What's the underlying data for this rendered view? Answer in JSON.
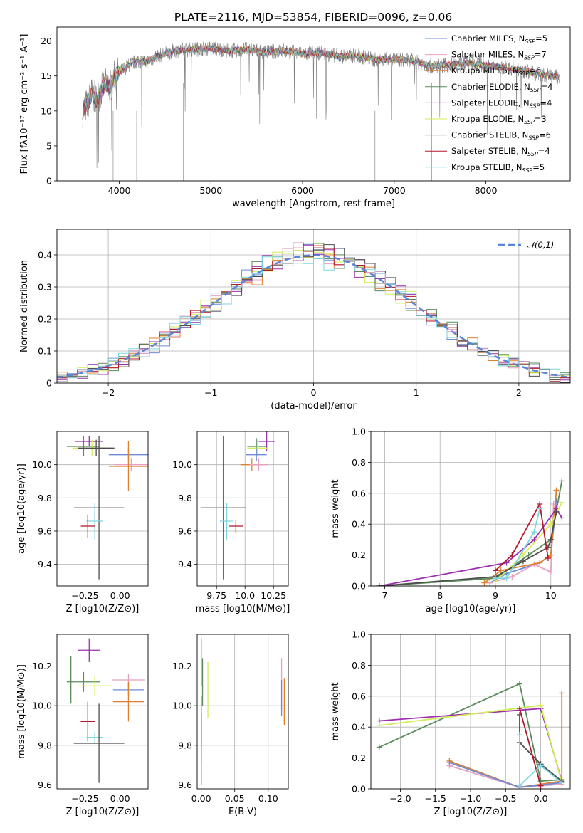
{
  "title": "PLATE=2116, MJD=53854, FIBERID=0096, z=0.06",
  "chart_data": [
    {
      "id": "spectrum",
      "type": "line",
      "xlabel": "wavelength [Angstrom, rest frame]",
      "ylabel": "Flux [fλ10⁻¹⁷ erg cm⁻² s⁻¹ A⁻¹]",
      "xlim": [
        3320,
        8920
      ],
      "ylim": [
        0,
        22
      ],
      "xticks": [
        4000,
        5000,
        6000,
        7000,
        8000
      ],
      "yticks": [
        0,
        5,
        10,
        15,
        20
      ],
      "grid": false,
      "legend_position": "upper-right",
      "data_color": "#808080",
      "continuum": {
        "x": [
          3600,
          3650,
          3700,
          3750,
          3800,
          3850,
          3900,
          3950,
          4000,
          4100,
          4200,
          4300,
          4400,
          4500,
          4600,
          4800,
          5000,
          5200,
          5400,
          5600,
          5800,
          6000,
          6200,
          6400,
          6600,
          6800,
          7000,
          7200,
          7400,
          7600,
          7800,
          8000,
          8200,
          8400,
          8600,
          8800
        ],
        "y": [
          10,
          11,
          12.5,
          11.5,
          12.8,
          14,
          13.5,
          15,
          15.5,
          16.5,
          17.2,
          17,
          17.8,
          18.2,
          18.6,
          18.8,
          19.0,
          18.6,
          18.8,
          18.4,
          18.6,
          18.2,
          18.3,
          17.8,
          17.9,
          17.3,
          17.4,
          17.2,
          16.4,
          16.6,
          16.9,
          16.5,
          16.2,
          15.8,
          15.2,
          14.8
        ]
      },
      "series": [
        {
          "name": "Chabrier MILES, N",
          "n_ssp": "5",
          "color": "#6d8bd5"
        },
        {
          "name": "Salpeter MILES, N",
          "n_ssp": "7",
          "color": "#e8a0c0"
        },
        {
          "name": "Kroupa MILES, N",
          "n_ssp": "6",
          "color": "#e07f2c"
        },
        {
          "name": "Chabrier ELODIE, N",
          "n_ssp": "4",
          "color": "#5a8c5a"
        },
        {
          "name": "Salpeter ELODIE, N",
          "n_ssp": "4",
          "color": "#9b2fae"
        },
        {
          "name": "Kroupa ELODIE, N",
          "n_ssp": "3",
          "color": "#d4ec5a"
        },
        {
          "name": "Chabrier STELIB, N",
          "n_ssp": "6",
          "color": "#4d4d4d"
        },
        {
          "name": "Salpeter STELIB, N",
          "n_ssp": "4",
          "color": "#b2182b"
        },
        {
          "name": "Kroupa STELIB, N",
          "n_ssp": "5",
          "color": "#7ed6df"
        }
      ]
    },
    {
      "id": "residuals",
      "type": "line",
      "xlabel": "(data-model)/error",
      "ylabel": "Normed distribution",
      "xlim": [
        -2.5,
        2.5
      ],
      "ylim": [
        0,
        0.48
      ],
      "xticks": [
        -2,
        -1,
        0,
        1,
        2
      ],
      "yticks": [
        0.0,
        0.1,
        0.2,
        0.3,
        0.4
      ],
      "grid": true,
      "legend_position": "upper-right",
      "gaussian_label": "𝒩(0,1)",
      "gaussian_color": "#5b85d6"
    },
    {
      "id": "z-age",
      "type": "scatter",
      "xlabel": "Z [log10(Z/Z⊙)]",
      "ylabel": "age  [log10(age/yr)]",
      "xlim": [
        -0.45,
        0.2
      ],
      "ylim": [
        9.27,
        10.2
      ],
      "xticks": [
        -0.25,
        0.0
      ],
      "yticks": [
        9.4,
        9.6,
        9.8,
        10.0
      ],
      "grid": true,
      "points": [
        {
          "x": -0.26,
          "y": 10.11,
          "xerr": 0.12,
          "yerr": 0.06,
          "color": "#5a8c5a"
        },
        {
          "x": -0.22,
          "y": 10.14,
          "xerr": 0.1,
          "yerr": 0.03,
          "color": "#9b2fae"
        },
        {
          "x": -0.2,
          "y": 10.1,
          "xerr": 0.14,
          "yerr": 0.05,
          "color": "#d4ec5a"
        },
        {
          "x": -0.17,
          "y": 10.1,
          "xerr": 0.13,
          "yerr": 0.05,
          "color": "#4d4d4d"
        },
        {
          "x": 0.06,
          "y": 10.06,
          "xerr": 0.14,
          "yerr": 0.04,
          "color": "#6d8bd5"
        },
        {
          "x": 0.08,
          "y": 10.0,
          "xerr": 0.12,
          "yerr": 0.04,
          "color": "#e8a0c0"
        },
        {
          "x": 0.06,
          "y": 9.99,
          "xerr": 0.14,
          "yerr": 0.15,
          "color": "#e07f2c"
        },
        {
          "x": -0.15,
          "y": 9.74,
          "xerr": 0.18,
          "yerr": 0.43,
          "color": "#4d4d4d"
        },
        {
          "x": -0.18,
          "y": 9.66,
          "xerr": 0.06,
          "yerr": 0.11,
          "color": "#7ed6df"
        },
        {
          "x": -0.23,
          "y": 9.63,
          "xerr": 0.05,
          "yerr": 0.07,
          "color": "#b2182b"
        }
      ]
    },
    {
      "id": "mass-age",
      "type": "scatter",
      "xlabel": "mass [log10(M/M⊙)]",
      "ylabel": "",
      "xlim": [
        9.58,
        10.38
      ],
      "ylim": [
        9.27,
        10.2
      ],
      "xticks": [
        9.75,
        10.0,
        10.25
      ],
      "yticks": [
        9.4,
        9.6,
        9.8,
        10.0
      ],
      "grid": true,
      "points": [
        {
          "x": 10.19,
          "y": 10.14,
          "xerr": 0.07,
          "yerr": 0.06,
          "color": "#9b2fae"
        },
        {
          "x": 10.1,
          "y": 10.11,
          "xerr": 0.08,
          "yerr": 0.05,
          "color": "#5a8c5a"
        },
        {
          "x": 10.11,
          "y": 10.1,
          "xerr": 0.09,
          "yerr": 0.05,
          "color": "#d4ec5a"
        },
        {
          "x": 10.1,
          "y": 10.06,
          "xerr": 0.09,
          "yerr": 0.04,
          "color": "#6d8bd5"
        },
        {
          "x": 10.06,
          "y": 10.0,
          "xerr": 0.1,
          "yerr": 0.04,
          "color": "#e07f2c"
        },
        {
          "x": 10.12,
          "y": 10.0,
          "xerr": 0.08,
          "yerr": 0.04,
          "color": "#e8a0c0"
        },
        {
          "x": 9.81,
          "y": 9.74,
          "xerr": 0.2,
          "yerr": 0.43,
          "color": "#4d4d4d"
        },
        {
          "x": 9.84,
          "y": 9.66,
          "xerr": 0.06,
          "yerr": 0.11,
          "color": "#7ed6df"
        },
        {
          "x": 9.92,
          "y": 9.63,
          "xerr": 0.06,
          "yerr": 0.04,
          "color": "#b2182b"
        }
      ]
    },
    {
      "id": "age-weight",
      "type": "line",
      "xlabel": "age  [log10(age/yr)]",
      "ylabel": "mass weight",
      "xlim": [
        6.75,
        10.35
      ],
      "ylim": [
        0,
        1.0
      ],
      "xticks": [
        7,
        8,
        9,
        10
      ],
      "yticks": [
        0.0,
        0.2,
        0.4,
        0.6,
        0.8,
        1.0
      ],
      "grid": true,
      "series": [
        {
          "color": "#6d8bd5",
          "x": [
            8.9,
            9.2,
            9.8,
            10.0,
            10.1
          ],
          "y": [
            0.02,
            0.08,
            0.15,
            0.2,
            0.55
          ]
        },
        {
          "color": "#e8a0c0",
          "x": [
            8.9,
            9.3,
            9.7,
            10.0,
            10.05
          ],
          "y": [
            0.02,
            0.06,
            0.14,
            0.09,
            0.53
          ]
        },
        {
          "color": "#e07f2c",
          "x": [
            8.8,
            9.1,
            9.8,
            10.0,
            10.1
          ],
          "y": [
            0.02,
            0.1,
            0.15,
            0.2,
            0.62
          ]
        },
        {
          "color": "#5a8c5a",
          "x": [
            6.9,
            9.0,
            9.6,
            10.0,
            10.2
          ],
          "y": [
            0.0,
            0.05,
            0.2,
            0.3,
            0.68
          ]
        },
        {
          "color": "#9b2fae",
          "x": [
            6.9,
            9.2,
            9.7,
            10.1,
            10.2
          ],
          "y": [
            0.0,
            0.15,
            0.3,
            0.5,
            0.44
          ]
        },
        {
          "color": "#d4ec5a",
          "x": [
            9.0,
            9.5,
            10.0,
            10.2
          ],
          "y": [
            0.03,
            0.2,
            0.4,
            0.54
          ]
        },
        {
          "color": "#4d4d4d",
          "x": [
            6.9,
            9.0,
            9.5,
            9.95,
            10.0,
            10.1
          ],
          "y": [
            0.0,
            0.06,
            0.16,
            0.25,
            0.3,
            0.48
          ]
        },
        {
          "color": "#b2182b",
          "x": [
            9.0,
            9.3,
            9.8,
            9.95
          ],
          "y": [
            0.1,
            0.2,
            0.53,
            0.18
          ]
        },
        {
          "color": "#7ed6df",
          "x": [
            9.0,
            9.2,
            9.7,
            9.8
          ],
          "y": [
            0.05,
            0.05,
            0.35,
            0.5
          ]
        }
      ]
    },
    {
      "id": "z-mass",
      "type": "scatter",
      "xlabel": "Z [log10(Z/Z⊙)]",
      "ylabel": "mass [log10(M/M⊙)]",
      "xlim": [
        -0.45,
        0.2
      ],
      "ylim": [
        9.58,
        10.36
      ],
      "xticks": [
        -0.25,
        0.0
      ],
      "yticks": [
        9.6,
        9.8,
        10.0,
        10.2
      ],
      "grid": true,
      "points": [
        {
          "x": -0.22,
          "y": 10.28,
          "xerr": 0.08,
          "yerr": 0.06,
          "color": "#9b2fae"
        },
        {
          "x": -0.35,
          "y": 10.13,
          "xerr": 0.0,
          "yerr": 0.12,
          "color": "#5a8c5a"
        },
        {
          "x": -0.26,
          "y": 10.12,
          "xerr": 0.12,
          "yerr": 0.05,
          "color": "#5a8c5a"
        },
        {
          "x": -0.18,
          "y": 10.1,
          "xerr": 0.12,
          "yerr": 0.05,
          "color": "#d4ec5a"
        },
        {
          "x": 0.06,
          "y": 10.13,
          "xerr": 0.12,
          "yerr": 0.03,
          "color": "#e8a0c0"
        },
        {
          "x": 0.06,
          "y": 10.08,
          "xerr": 0.11,
          "yerr": 0.03,
          "color": "#6d8bd5"
        },
        {
          "x": 0.06,
          "y": 10.02,
          "xerr": 0.11,
          "yerr": 0.1,
          "color": "#e07f2c"
        },
        {
          "x": -0.23,
          "y": 9.92,
          "xerr": 0.05,
          "yerr": 0.1,
          "color": "#b2182b"
        },
        {
          "x": -0.18,
          "y": 9.84,
          "xerr": 0.06,
          "yerr": 0.03,
          "color": "#7ed6df"
        },
        {
          "x": -0.15,
          "y": 9.81,
          "xerr": 0.18,
          "yerr": 0.2,
          "color": "#4d4d4d"
        }
      ]
    },
    {
      "id": "ebv-mass",
      "type": "scatter",
      "xlabel": "E(B-V)",
      "ylabel": "",
      "xlim": [
        -0.006,
        0.13
      ],
      "ylim": [
        9.58,
        10.36
      ],
      "xticks": [
        0.0,
        0.05,
        0.1
      ],
      "yticks": [
        9.6,
        9.8,
        10.0,
        10.2
      ],
      "grid": true,
      "points": [
        {
          "x": 0.0,
          "y": 10.22,
          "xerr": 0.0,
          "yerr": 0.12,
          "color": "#9b2fae"
        },
        {
          "x": 0.002,
          "y": 10.12,
          "xerr": 0.0,
          "yerr": 0.12,
          "color": "#5a8c5a"
        },
        {
          "x": 0.01,
          "y": 10.08,
          "xerr": 0.0,
          "yerr": 0.14,
          "color": "#d4ec5a"
        },
        {
          "x": 0.12,
          "y": 10.11,
          "xerr": 0.0,
          "yerr": 0.13,
          "color": "#e8a0c0"
        },
        {
          "x": 0.12,
          "y": 10.04,
          "xerr": 0.0,
          "yerr": 0.09,
          "color": "#6d8bd5"
        },
        {
          "x": 0.124,
          "y": 10.02,
          "xerr": 0.0,
          "yerr": 0.12,
          "color": "#e07f2c"
        },
        {
          "x": 0.0,
          "y": 9.92,
          "xerr": 0.0,
          "yerr": 0.13,
          "color": "#b2182b"
        },
        {
          "x": 0.0,
          "y": 9.83,
          "xerr": 0.0,
          "yerr": 0.12,
          "color": "#7ed6df"
        },
        {
          "x": 0.0,
          "y": 9.78,
          "xerr": 0.0,
          "yerr": 0.18,
          "color": "#4d4d4d"
        }
      ]
    },
    {
      "id": "z-weight",
      "type": "line",
      "xlabel": "Z [log10(Z/Z⊙)]",
      "ylabel": "mass weight",
      "xlim": [
        -2.42,
        0.42
      ],
      "ylim": [
        0,
        1.0
      ],
      "xticks": [
        -2.0,
        -1.5,
        -1.0,
        -0.5,
        0.0
      ],
      "yticks": [
        0.0,
        0.2,
        0.4,
        0.6,
        0.8,
        1.0
      ],
      "grid": true,
      "series": [
        {
          "color": "#5a8c5a",
          "x": [
            -2.3,
            -0.3,
            0.0,
            0.3
          ],
          "y": [
            0.27,
            0.68,
            0.05,
            0.06
          ]
        },
        {
          "color": "#9b2fae",
          "x": [
            -2.3,
            0.0,
            0.3
          ],
          "y": [
            0.44,
            0.52,
            0.05
          ]
        },
        {
          "color": "#d4ec5a",
          "x": [
            -2.3,
            0.0,
            0.3
          ],
          "y": [
            0.41,
            0.54,
            0.04
          ]
        },
        {
          "color": "#e8a0c0",
          "x": [
            -1.3,
            -0.3,
            0.3
          ],
          "y": [
            0.15,
            0.01,
            0.03
          ]
        },
        {
          "color": "#e07f2c",
          "x": [
            -1.3,
            -0.3,
            0.3,
            0.3
          ],
          "y": [
            0.18,
            0.01,
            0.05,
            0.62
          ]
        },
        {
          "color": "#6d8bd5",
          "x": [
            -1.3,
            -0.3,
            0.3
          ],
          "y": [
            0.17,
            0.01,
            0.04
          ]
        },
        {
          "color": "#4d4d4d",
          "x": [
            -0.3,
            -0.3,
            0.0,
            0.3
          ],
          "y": [
            0.48,
            0.3,
            0.16,
            0.05
          ]
        },
        {
          "color": "#b2182b",
          "x": [
            -0.3,
            0.0
          ],
          "y": [
            0.52,
            0.02
          ]
        },
        {
          "color": "#7ed6df",
          "x": [
            -0.3,
            -0.3,
            0.0,
            0.3
          ],
          "y": [
            0.35,
            0.02,
            0.15,
            0.04
          ]
        }
      ]
    }
  ]
}
